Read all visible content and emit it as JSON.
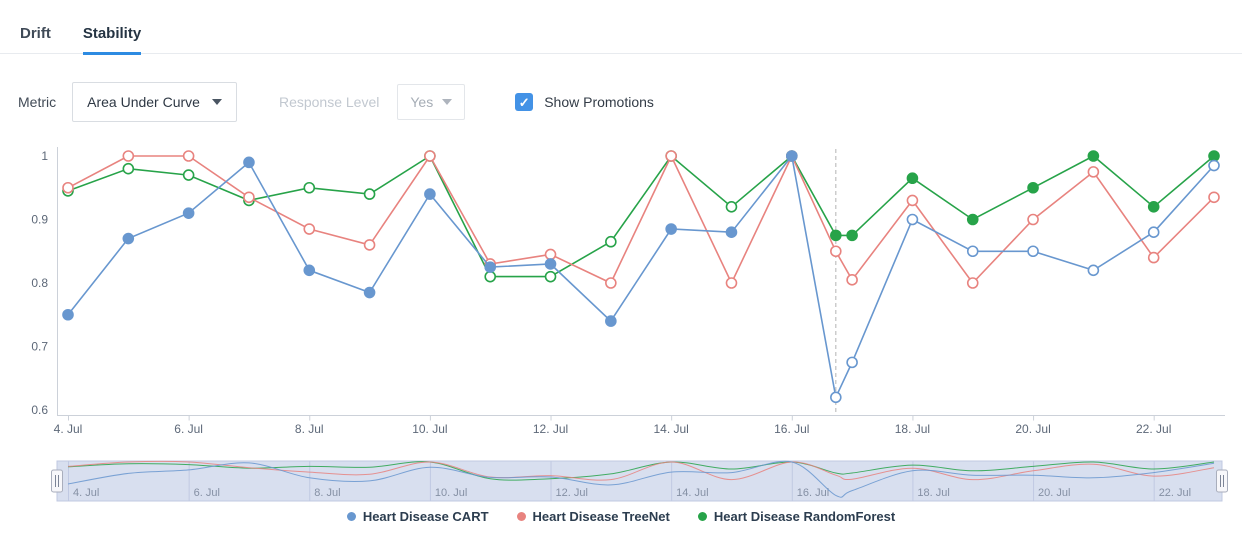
{
  "tabs": {
    "drift_label": "Drift",
    "stability_label": "Stability",
    "active_tab": "Stability"
  },
  "controls": {
    "metric_label": "Metric",
    "metric_value": "Area Under Curve",
    "response_level_label": "Response Level",
    "response_level_value": "Yes",
    "response_level_disabled": true,
    "show_promotions_label": "Show Promotions",
    "show_promotions_checked": true
  },
  "icons": {
    "dropdown_caret": "caret-down",
    "checkbox_check": "✓",
    "navigator_handle": "drag-handle"
  },
  "colors": {
    "accent_blue": "#2d8be2",
    "checkbox_blue": "#4392e6",
    "axis_line": "#ccd1d9",
    "axis_text": "#5d6878",
    "promotion_line": "#b3b3b3",
    "navigator_fill": "#d8dfef",
    "navigator_border": "#c0c9e2",
    "navigator_text": "#8590a4"
  },
  "chart_data": {
    "type": "line",
    "title": "",
    "xlabel": "",
    "ylabel": "",
    "x_unit": "day of July",
    "x_days": [
      4,
      5,
      6,
      7,
      8,
      9,
      10,
      11,
      12,
      13,
      14,
      15,
      16,
      16.73,
      17,
      18,
      19,
      20,
      21,
      22,
      23
    ],
    "x_tick_days": [
      4,
      6,
      8,
      10,
      12,
      14,
      16,
      18,
      20,
      22
    ],
    "x_tick_labels": [
      "4. Jul",
      "6. Jul",
      "8. Jul",
      "10. Jul",
      "12. Jul",
      "14. Jul",
      "16. Jul",
      "18. Jul",
      "20. Jul",
      "22. Jul"
    ],
    "y_ticks": [
      1,
      0.9,
      0.8,
      0.7,
      0.6
    ],
    "y_tick_labels": [
      "1",
      "0.9",
      "0.8",
      "0.7",
      "0.6"
    ],
    "ylim": [
      0.6,
      1.0
    ],
    "grid": false,
    "legend_position": "bottom-center",
    "promotion": {
      "shown": true,
      "line_day": 16.73,
      "style": "dashed"
    },
    "series": [
      {
        "name": "Heart Disease CART",
        "color": "#6897cf",
        "values": [
          0.75,
          0.87,
          0.91,
          0.99,
          0.82,
          0.785,
          0.94,
          0.825,
          0.83,
          0.74,
          0.885,
          0.88,
          1.0,
          0.62,
          0.675,
          0.9,
          0.85,
          0.85,
          0.82,
          0.88,
          0.985
        ],
        "marker": {
          "before_switch": "filled",
          "after_switch": "open",
          "switch_day": 16.5
        }
      },
      {
        "name": "Heart Disease TreeNet",
        "color": "#e8837f",
        "values": [
          0.95,
          1.0,
          1.0,
          0.935,
          0.885,
          0.86,
          1.0,
          0.83,
          0.845,
          0.8,
          1.0,
          0.8,
          1.0,
          0.85,
          0.805,
          0.93,
          0.8,
          0.9,
          0.975,
          0.84,
          0.935
        ],
        "marker": {
          "before_switch": "open",
          "after_switch": "open",
          "switch_day": null
        }
      },
      {
        "name": "Heart Disease RandomForest",
        "color": "#27a349",
        "values": [
          0.945,
          0.98,
          0.97,
          0.93,
          0.95,
          0.94,
          1.0,
          0.81,
          0.81,
          0.865,
          1.0,
          0.92,
          1.0,
          0.875,
          0.875,
          0.965,
          0.9,
          0.95,
          1.0,
          0.92,
          1.0
        ],
        "marker": {
          "before_switch": "open",
          "after_switch": "filled",
          "switch_day": 16.5
        }
      }
    ],
    "navigator": {
      "shown": true,
      "tick_labels": [
        "4. Jul",
        "6. Jul",
        "8. Jul",
        "10. Jul",
        "12. Jul",
        "14. Jul",
        "16. Jul",
        "18. Jul",
        "20. Jul",
        "22. Jul"
      ],
      "range_selected": "full"
    }
  }
}
